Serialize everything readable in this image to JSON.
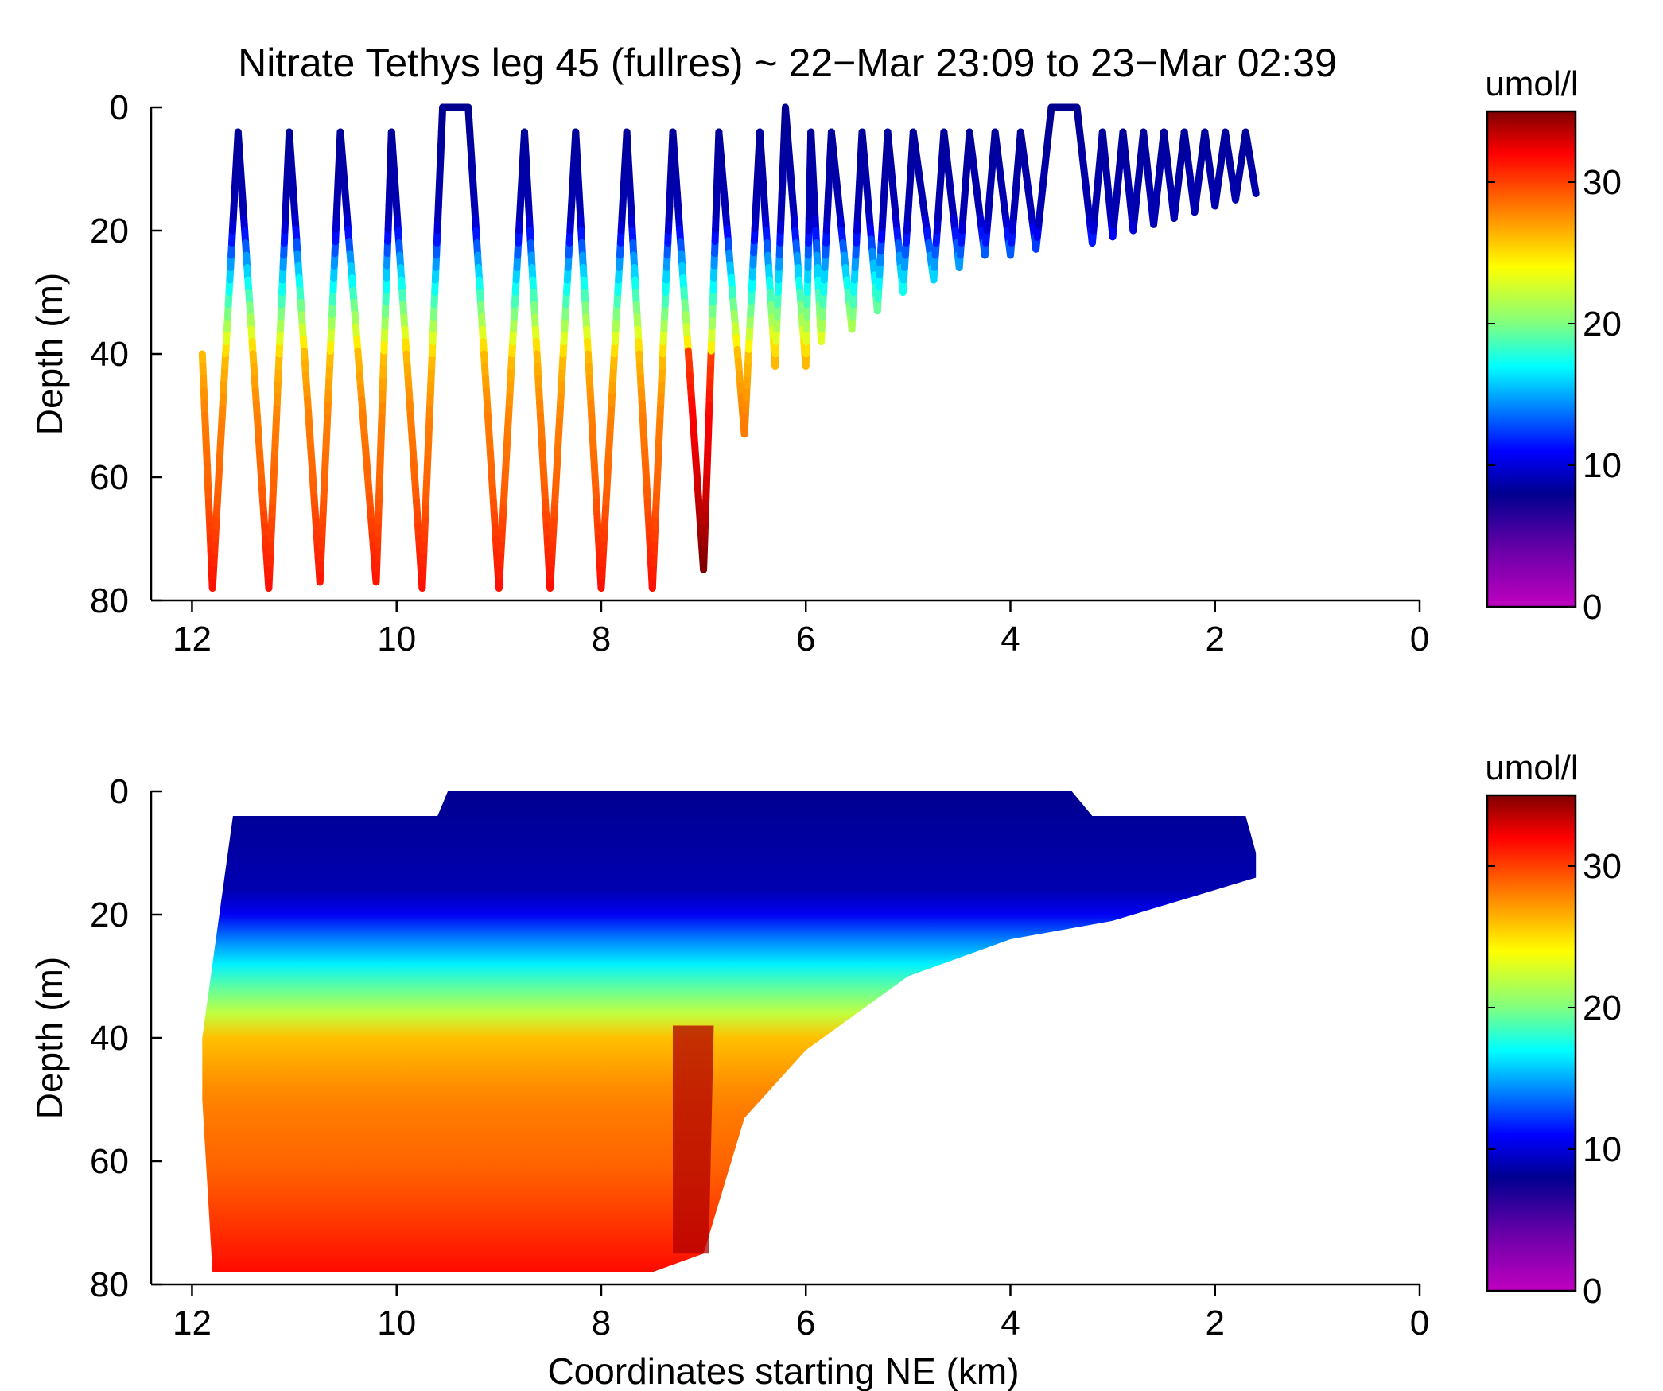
{
  "colors": {
    "colormap": [
      "#c000c0",
      "#6a00a8",
      "#000090",
      "#0000ff",
      "#0080ff",
      "#00ffff",
      "#80ff80",
      "#ffff00",
      "#ff8000",
      "#ff0000",
      "#800000"
    ],
    "colormap_stops": [
      0,
      4,
      8,
      11,
      14,
      17,
      20,
      24,
      28,
      32,
      35
    ]
  },
  "chart_data": [
    {
      "type": "scatter",
      "title": "Nitrate Tethys leg 45 (fullres) ~ 22−Mar 23:09 to 23−Mar 02:39",
      "xlabel": "",
      "ylabel": "Depth (m)",
      "xlim": [
        12.4,
        0
      ],
      "ylim": [
        0,
        80
      ],
      "y_reversed": true,
      "x_ticks": [
        12,
        10,
        8,
        6,
        4,
        2,
        0
      ],
      "y_ticks": [
        0,
        20,
        40,
        60,
        80
      ],
      "colorbar": {
        "label": "umol/l",
        "range": [
          0,
          35
        ],
        "ticks": [
          0,
          10,
          20,
          30
        ]
      },
      "series": [
        {
          "profile_turning_points": [
            {
              "x": 11.9,
              "depth": 40
            },
            {
              "x": 11.8,
              "depth": 78
            },
            {
              "x": 11.55,
              "depth": 4
            },
            {
              "x": 11.25,
              "depth": 78
            },
            {
              "x": 11.05,
              "depth": 4
            },
            {
              "x": 10.75,
              "depth": 77
            },
            {
              "x": 10.55,
              "depth": 4
            },
            {
              "x": 10.2,
              "depth": 77
            },
            {
              "x": 10.05,
              "depth": 4
            },
            {
              "x": 9.75,
              "depth": 78
            },
            {
              "x": 9.55,
              "depth": 0
            },
            {
              "x": 9.3,
              "depth": 0
            },
            {
              "x": 9.0,
              "depth": 78
            },
            {
              "x": 8.75,
              "depth": 4
            },
            {
              "x": 8.5,
              "depth": 78
            },
            {
              "x": 8.25,
              "depth": 4
            },
            {
              "x": 8.0,
              "depth": 78
            },
            {
              "x": 7.75,
              "depth": 4
            },
            {
              "x": 7.5,
              "depth": 78
            },
            {
              "x": 7.3,
              "depth": 4
            },
            {
              "x": 7.0,
              "depth": 75
            },
            {
              "x": 6.85,
              "depth": 4
            },
            {
              "x": 6.6,
              "depth": 53
            },
            {
              "x": 6.45,
              "depth": 4
            },
            {
              "x": 6.3,
              "depth": 42
            },
            {
              "x": 6.2,
              "depth": 0
            },
            {
              "x": 6.0,
              "depth": 42
            },
            {
              "x": 5.95,
              "depth": 4
            },
            {
              "x": 5.85,
              "depth": 38
            },
            {
              "x": 5.75,
              "depth": 4
            },
            {
              "x": 5.55,
              "depth": 36
            },
            {
              "x": 5.45,
              "depth": 4
            },
            {
              "x": 5.3,
              "depth": 33
            },
            {
              "x": 5.2,
              "depth": 4
            },
            {
              "x": 5.05,
              "depth": 30
            },
            {
              "x": 4.95,
              "depth": 4
            },
            {
              "x": 4.75,
              "depth": 28
            },
            {
              "x": 4.65,
              "depth": 4
            },
            {
              "x": 4.5,
              "depth": 26
            },
            {
              "x": 4.4,
              "depth": 4
            },
            {
              "x": 4.25,
              "depth": 24
            },
            {
              "x": 4.15,
              "depth": 4
            },
            {
              "x": 4.0,
              "depth": 24
            },
            {
              "x": 3.9,
              "depth": 4
            },
            {
              "x": 3.75,
              "depth": 23
            },
            {
              "x": 3.6,
              "depth": 0
            },
            {
              "x": 3.35,
              "depth": 0
            },
            {
              "x": 3.2,
              "depth": 22
            },
            {
              "x": 3.1,
              "depth": 4
            },
            {
              "x": 3.0,
              "depth": 21
            },
            {
              "x": 2.9,
              "depth": 4
            },
            {
              "x": 2.8,
              "depth": 20
            },
            {
              "x": 2.7,
              "depth": 4
            },
            {
              "x": 2.6,
              "depth": 19
            },
            {
              "x": 2.5,
              "depth": 4
            },
            {
              "x": 2.4,
              "depth": 18
            },
            {
              "x": 2.3,
              "depth": 4
            },
            {
              "x": 2.2,
              "depth": 17
            },
            {
              "x": 2.1,
              "depth": 4
            },
            {
              "x": 2.0,
              "depth": 16
            },
            {
              "x": 1.9,
              "depth": 4
            },
            {
              "x": 1.8,
              "depth": 15
            },
            {
              "x": 1.7,
              "depth": 4
            },
            {
              "x": 1.6,
              "depth": 14
            }
          ]
        }
      ]
    },
    {
      "type": "heatmap",
      "title": "",
      "xlabel": "Coordinates starting NE (km)",
      "ylabel": "Depth (m)",
      "xlim": [
        12.4,
        0
      ],
      "ylim": [
        0,
        80
      ],
      "y_reversed": true,
      "x_ticks": [
        12,
        10,
        8,
        6,
        4,
        2,
        0
      ],
      "y_ticks": [
        0,
        20,
        40,
        60,
        80
      ],
      "colorbar": {
        "label": "umol/l",
        "range": [
          0,
          35
        ],
        "ticks": [
          0,
          10,
          20,
          30
        ]
      },
      "layers_depth_to_value": [
        {
          "depth": 0,
          "value": 8
        },
        {
          "depth": 18,
          "value": 9
        },
        {
          "depth": 24,
          "value": 14
        },
        {
          "depth": 30,
          "value": 18
        },
        {
          "depth": 36,
          "value": 22
        },
        {
          "depth": 40,
          "value": 26
        },
        {
          "depth": 50,
          "value": 28
        },
        {
          "depth": 62,
          "value": 29
        },
        {
          "depth": 80,
          "value": 32
        }
      ],
      "max_depth_by_x": [
        {
          "x": 11.9,
          "depth": 50
        },
        {
          "x": 11.8,
          "depth": 78
        },
        {
          "x": 7.5,
          "depth": 78
        },
        {
          "x": 7.0,
          "depth": 75
        },
        {
          "x": 6.6,
          "depth": 53
        },
        {
          "x": 6.0,
          "depth": 42
        },
        {
          "x": 5.5,
          "depth": 36
        },
        {
          "x": 5.0,
          "depth": 30
        },
        {
          "x": 4.0,
          "depth": 24
        },
        {
          "x": 3.0,
          "depth": 21
        },
        {
          "x": 2.0,
          "depth": 16
        },
        {
          "x": 1.6,
          "depth": 14
        }
      ],
      "min_depth_by_x": [
        {
          "x": 11.9,
          "depth": 40
        },
        {
          "x": 11.6,
          "depth": 4
        },
        {
          "x": 9.6,
          "depth": 4
        },
        {
          "x": 9.5,
          "depth": 0
        },
        {
          "x": 3.4,
          "depth": 0
        },
        {
          "x": 3.2,
          "depth": 4
        },
        {
          "x": 1.7,
          "depth": 4
        },
        {
          "x": 1.6,
          "depth": 10
        }
      ]
    }
  ]
}
